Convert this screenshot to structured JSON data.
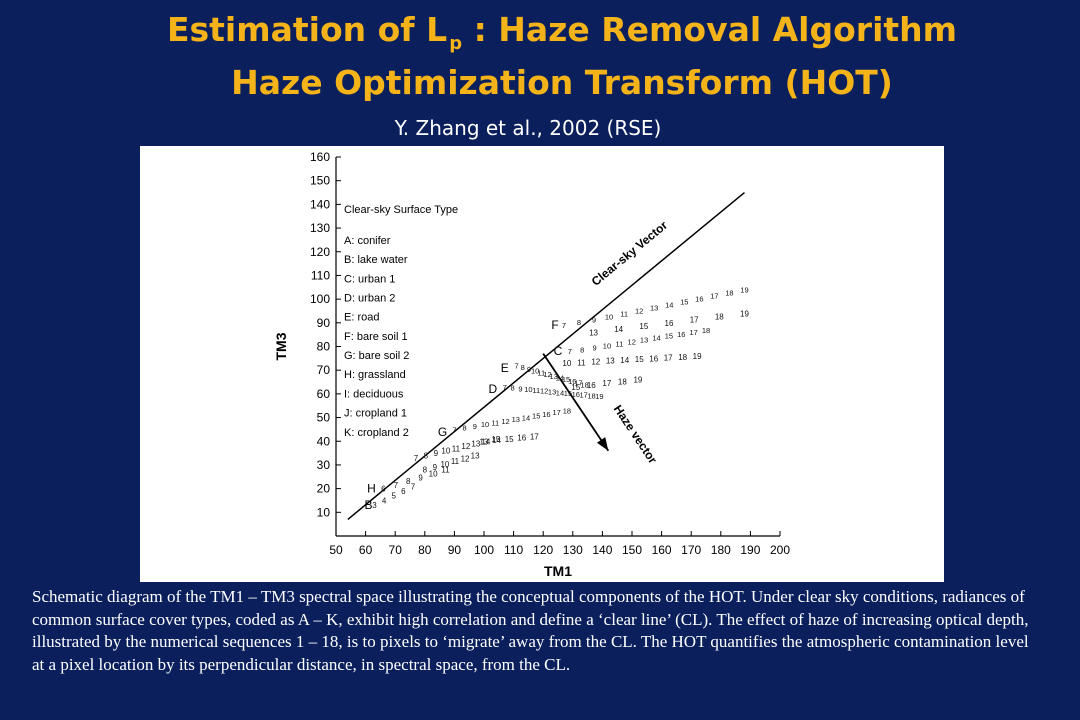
{
  "slide": {
    "title_line1_main": "Estimation of L",
    "title_line1_sub": "p",
    "title_line1_rest": " : Haze Removal Algorithm",
    "title_line2": "Haze Optimization Transform (HOT)",
    "citation": "Y. Zhang et al., 2002 (RSE)",
    "caption": "Schematic diagram of the TM1 – TM3 spectral space illustrating the conceptual components of the HOT. Under clear sky conditions, radiances of common surface cover types, coded as A – K, exhibit high correlation and define a ‘clear line’ (CL). The effect of haze of increasing optical depth, illustrated by the numerical sequences 1 – 18, is to pixels to ‘migrate’ away from the CL. The HOT quantifies the atmospheric contamination level at a pixel location by its perpendicular distance, in spectral space, from the CL.",
    "colors": {
      "background": "#0a1f5c",
      "title": "#f5b31a",
      "text": "#ffffff"
    }
  },
  "chart_data": {
    "type": "scatter",
    "xlabel": "TM1",
    "ylabel": "TM3",
    "xlim": [
      50,
      200
    ],
    "ylim": [
      0,
      160
    ],
    "x_ticks": [
      50,
      60,
      70,
      80,
      90,
      100,
      110,
      120,
      130,
      140,
      150,
      160,
      170,
      180,
      190,
      200
    ],
    "y_ticks": [
      10,
      20,
      30,
      40,
      50,
      60,
      70,
      80,
      90,
      100,
      110,
      120,
      130,
      140,
      150,
      160
    ],
    "grid": false,
    "legend": {
      "title": "Clear-sky Surface Type",
      "placement": "top-left",
      "entries": [
        "A: conifer",
        "B: lake water",
        "C: urban 1",
        "D: urban 2",
        "E: road",
        "F: bare soil 1",
        "G: bare soil 2",
        "H: grassland",
        "I: deciduous",
        "J: cropland 1",
        "K: cropland 2"
      ]
    },
    "clear_line": {
      "label": "Clear-sky Vector",
      "start": [
        54,
        7
      ],
      "end": [
        188,
        145
      ]
    },
    "haze_vector": {
      "label": "Haze vector",
      "start": [
        120,
        77
      ],
      "end": [
        142,
        36
      ]
    },
    "surface_points": [
      {
        "label": "F",
        "x": 124,
        "y": 89
      },
      {
        "label": "C",
        "x": 125,
        "y": 78
      },
      {
        "label": "E",
        "x": 107,
        "y": 71
      },
      {
        "label": "D",
        "x": 103,
        "y": 62
      },
      {
        "label": "G",
        "x": 86,
        "y": 44
      },
      {
        "label": "H",
        "x": 62,
        "y": 20
      },
      {
        "label": "B",
        "x": 61,
        "y": 13
      }
    ],
    "haze_sequences": [
      {
        "name": "F",
        "start": [
          127,
          89
        ],
        "end": [
          188,
          104
        ],
        "numbers": [
          "7",
          "8",
          "9",
          "10",
          "11",
          "12",
          "13",
          "14",
          "15",
          "16",
          "17",
          "18",
          "19"
        ]
      },
      {
        "name": "F2",
        "start": [
          137,
          86
        ],
        "end": [
          188,
          94
        ],
        "numbers": [
          "13",
          "14",
          "15",
          "16",
          "17",
          "18",
          "19"
        ]
      },
      {
        "name": "C",
        "start": [
          129,
          78
        ],
        "end": [
          175,
          87
        ],
        "numbers": [
          "7",
          "8",
          "9",
          "10",
          "11",
          "12",
          "13",
          "14",
          "15",
          "16",
          "17",
          "18"
        ]
      },
      {
        "name": "C2",
        "start": [
          128,
          73
        ],
        "end": [
          172,
          76
        ],
        "numbers": [
          "10",
          "11",
          "12",
          "13",
          "14",
          "15",
          "16",
          "17",
          "18",
          "19"
        ]
      },
      {
        "name": "C3",
        "start": [
          131,
          63
        ],
        "end": [
          152,
          66
        ],
        "numbers": [
          "15",
          "16",
          "17",
          "18",
          "19"
        ]
      },
      {
        "name": "E",
        "start": [
          111,
          72
        ],
        "end": [
          134,
          64
        ],
        "numbers": [
          "7",
          "8",
          "9",
          "10",
          "11",
          "12",
          "13",
          "14",
          "15",
          "16",
          "17",
          "18"
        ]
      },
      {
        "name": "D",
        "start": [
          107,
          63
        ],
        "end": [
          139,
          59
        ],
        "numbers": [
          "7",
          "8",
          "9",
          "10",
          "11",
          "12",
          "13",
          "14",
          "15",
          "16",
          "17",
          "18",
          "19"
        ]
      },
      {
        "name": "G",
        "start": [
          90,
          45
        ],
        "end": [
          128,
          53
        ],
        "numbers": [
          "7",
          "8",
          "9",
          "10",
          "11",
          "12",
          "13",
          "14",
          "15",
          "16",
          "17",
          "18"
        ]
      },
      {
        "name": "G2",
        "start": [
          100,
          40
        ],
        "end": [
          117,
          42
        ],
        "numbers": [
          "13",
          "14",
          "15",
          "16",
          "17"
        ]
      },
      {
        "name": "J",
        "start": [
          77,
          33
        ],
        "end": [
          104,
          41
        ],
        "numbers": [
          "7",
          "8",
          "9",
          "10",
          "11",
          "12",
          "13",
          "14",
          "15"
        ]
      },
      {
        "name": "J2",
        "start": [
          80,
          28
        ],
        "end": [
          97,
          34
        ],
        "numbers": [
          "8",
          "9",
          "10",
          "11",
          "12",
          "13"
        ]
      },
      {
        "name": "H",
        "start": [
          66,
          20
        ],
        "end": [
          87,
          28
        ],
        "numbers": [
          "6",
          "7",
          "8",
          "9",
          "10",
          "11"
        ]
      },
      {
        "name": "B",
        "start": [
          63,
          13
        ],
        "end": [
          76,
          21
        ],
        "numbers": [
          "3",
          "4",
          "5",
          "6",
          "7"
        ]
      }
    ]
  }
}
